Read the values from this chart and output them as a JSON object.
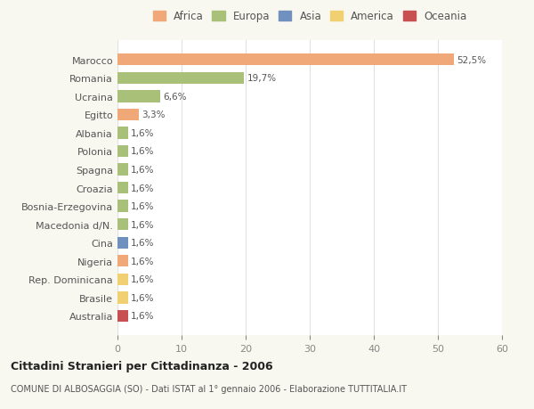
{
  "categories": [
    "Marocco",
    "Romania",
    "Ucraina",
    "Egitto",
    "Albania",
    "Polonia",
    "Spagna",
    "Croazia",
    "Bosnia-Erzegovina",
    "Macedonia d/N.",
    "Cina",
    "Nigeria",
    "Rep. Dominicana",
    "Brasile",
    "Australia"
  ],
  "values": [
    52.5,
    19.7,
    6.6,
    3.3,
    1.6,
    1.6,
    1.6,
    1.6,
    1.6,
    1.6,
    1.6,
    1.6,
    1.6,
    1.6,
    1.6
  ],
  "labels": [
    "52,5%",
    "19,7%",
    "6,6%",
    "3,3%",
    "1,6%",
    "1,6%",
    "1,6%",
    "1,6%",
    "1,6%",
    "1,6%",
    "1,6%",
    "1,6%",
    "1,6%",
    "1,6%",
    "1,6%"
  ],
  "colors": [
    "#f0a878",
    "#a8c078",
    "#a8c078",
    "#f0a878",
    "#a8c078",
    "#a8c078",
    "#a8c078",
    "#a8c078",
    "#a8c078",
    "#a8c078",
    "#7090c0",
    "#f0a878",
    "#f0d070",
    "#f0d070",
    "#c85050"
  ],
  "continents": [
    "Africa",
    "Europa",
    "Europa",
    "Africa",
    "Europa",
    "Europa",
    "Europa",
    "Europa",
    "Europa",
    "Europa",
    "Asia",
    "Africa",
    "America",
    "America",
    "Oceania"
  ],
  "legend_labels": [
    "Africa",
    "Europa",
    "Asia",
    "America",
    "Oceania"
  ],
  "legend_colors": [
    "#f0a878",
    "#a8c078",
    "#7090c0",
    "#f0d070",
    "#c85050"
  ],
  "title": "Cittadini Stranieri per Cittadinanza - 2006",
  "subtitle": "COMUNE DI ALBOSAGGIA (SO) - Dati ISTAT al 1° gennaio 2006 - Elaborazione TUTTITALIA.IT",
  "xlim": [
    0,
    60
  ],
  "xticks": [
    0,
    10,
    20,
    30,
    40,
    50,
    60
  ],
  "background_color": "#f8f8f0",
  "plot_background": "#ffffff",
  "grid_color": "#e0e0e0"
}
